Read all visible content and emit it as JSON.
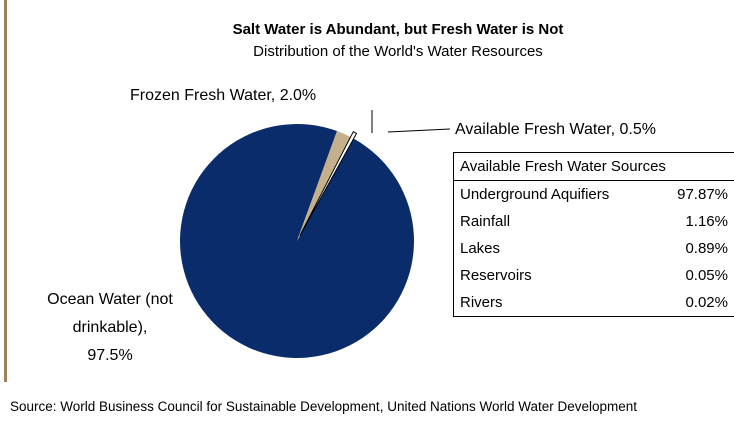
{
  "chart_data": {
    "type": "pie",
    "title": "Salt Water is Abundant, but Fresh Water is Not",
    "subtitle": "Distribution of the World's Water Resources",
    "categories": [
      "Ocean Water (not drinkable),",
      "Frozen Fresh Water,",
      "Available Fresh Water,"
    ],
    "values": [
      97.5,
      2.0,
      0.5
    ],
    "value_labels": [
      "97.5%",
      "2.0%",
      "0.5%"
    ],
    "colors": [
      "#0b2c6b",
      "#c4b08a",
      "#ffffff"
    ],
    "table": {
      "header": "Available Fresh Water Sources",
      "rows": [
        [
          "Underground Aquifiers",
          "97.87%"
        ],
        [
          "Rainfall",
          "1.16%"
        ],
        [
          "Lakes",
          "0.89%"
        ],
        [
          "Reservoirs",
          "0.05%"
        ],
        [
          "Rivers",
          "0.02%"
        ]
      ]
    },
    "source": "Source: World Business Council for Sustainable Development, United Nations World Water Development"
  }
}
